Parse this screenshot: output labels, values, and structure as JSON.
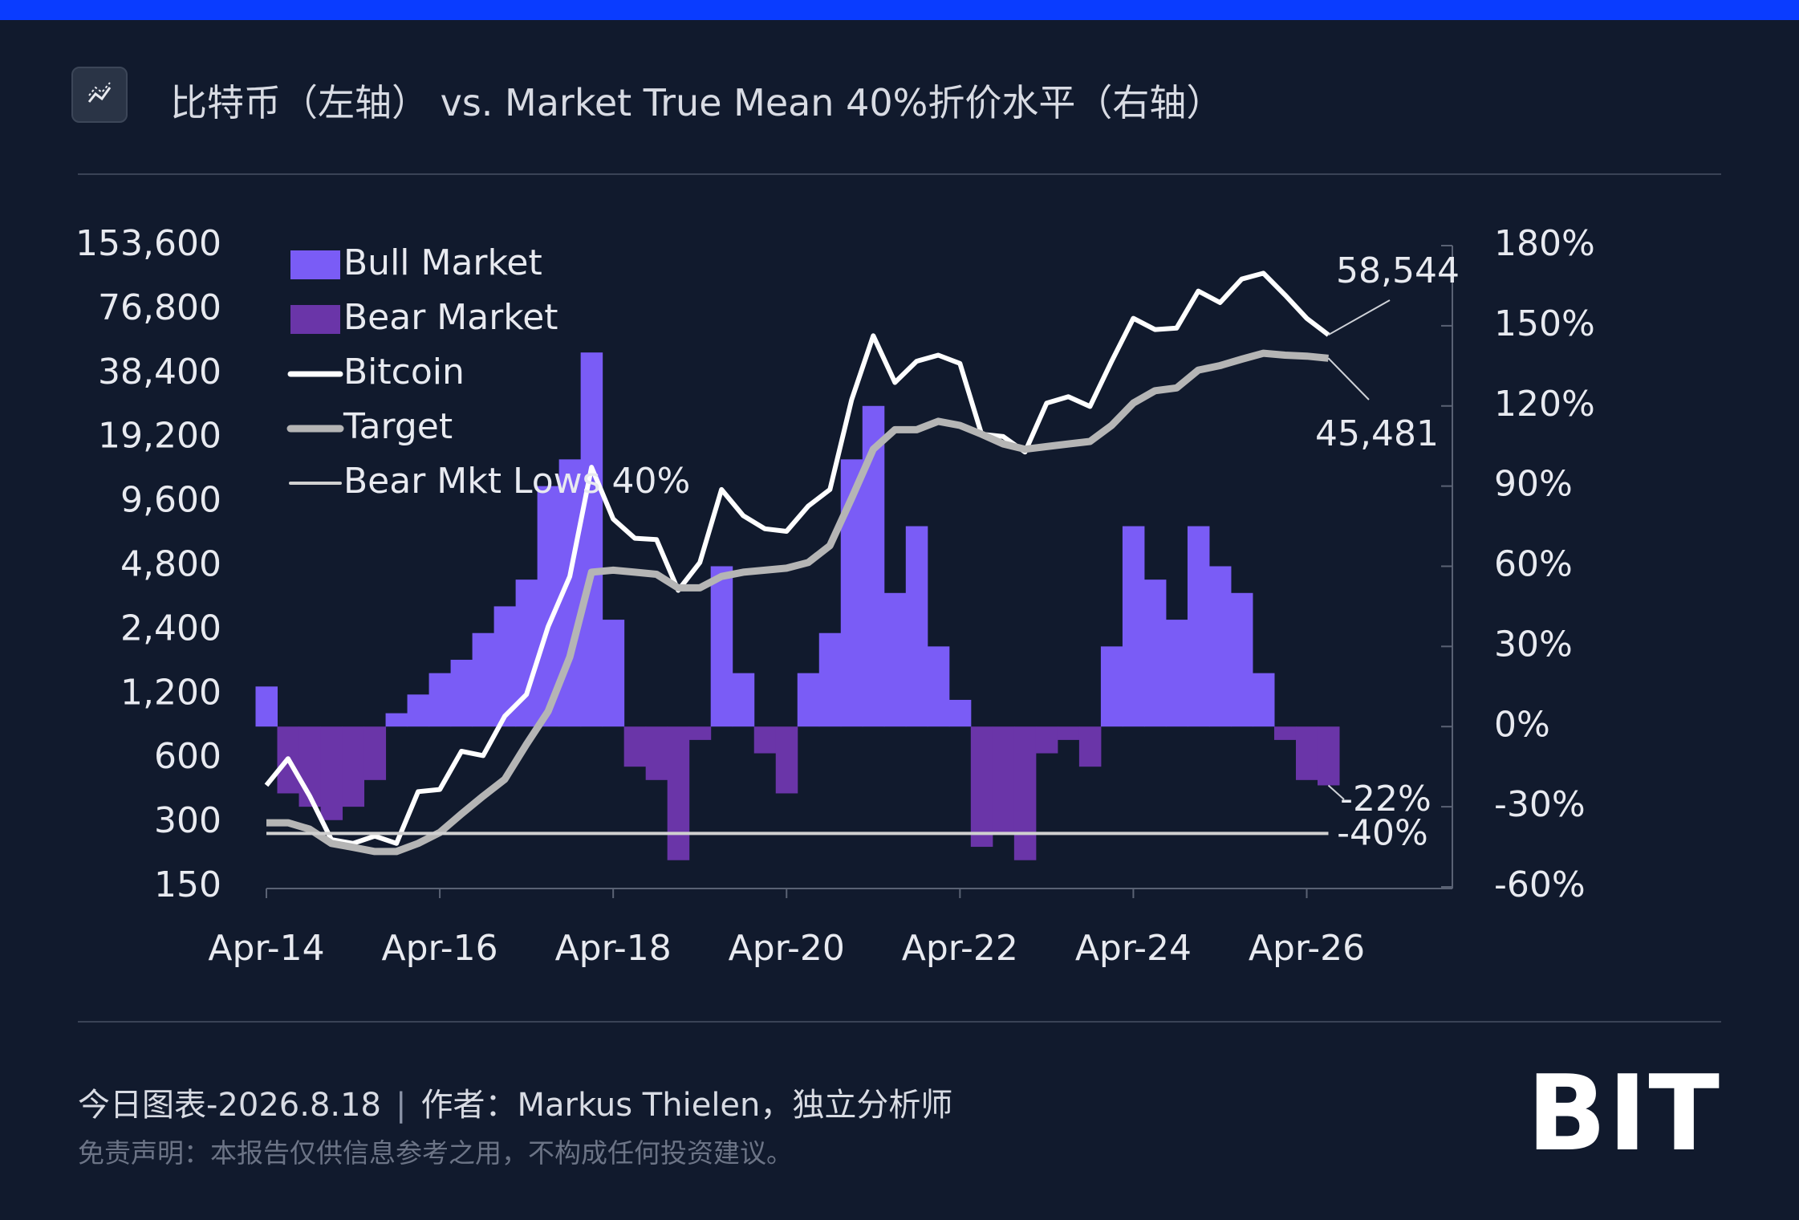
{
  "chart_data": {
    "type": "combo",
    "title": "比特币（左轴） vs. Market True Mean 40%折价水平（右轴）",
    "x": [
      2014.25,
      2014.5,
      2014.75,
      2015.0,
      2015.25,
      2015.5,
      2015.75,
      2016.0,
      2016.25,
      2016.5,
      2016.75,
      2017.0,
      2017.25,
      2017.5,
      2017.75,
      2018.0,
      2018.25,
      2018.5,
      2018.75,
      2019.0,
      2019.25,
      2019.5,
      2019.75,
      2020.0,
      2020.25,
      2020.5,
      2020.75,
      2021.0,
      2021.25,
      2021.5,
      2021.75,
      2022.0,
      2022.25,
      2022.5,
      2022.75,
      2023.0,
      2023.25,
      2023.5,
      2023.75,
      2024.0,
      2024.25,
      2024.5,
      2024.75,
      2025.0,
      2025.25,
      2025.5,
      2025.75,
      2026.0,
      2026.25,
      2026.5
    ],
    "xlim": [
      2014.25,
      2027.93
    ],
    "xticks": [
      {
        "value": 2014.25,
        "label": "Apr-14"
      },
      {
        "value": 2016.25,
        "label": "Apr-16"
      },
      {
        "value": 2018.25,
        "label": "Apr-18"
      },
      {
        "value": 2020.25,
        "label": "Apr-20"
      },
      {
        "value": 2022.25,
        "label": "Apr-22"
      },
      {
        "value": 2024.25,
        "label": "Apr-24"
      },
      {
        "value": 2026.25,
        "label": "Apr-26"
      }
    ],
    "yscale": "log",
    "ylim": [
      150,
      153600
    ],
    "yticks": [
      150,
      300,
      600,
      {
        "value": 1200,
        "label": "1,200"
      },
      {
        "value": 2400,
        "label": "2,400"
      },
      {
        "value": 4800,
        "label": "4,800"
      },
      {
        "value": 9600,
        "label": "9,600"
      },
      {
        "value": 19200,
        "label": "19,200"
      },
      {
        "value": 38400,
        "label": "38,400"
      },
      {
        "value": 76800,
        "label": "76,800"
      },
      {
        "value": 153600,
        "label": "153,600"
      }
    ],
    "y2lim": [
      -60,
      180
    ],
    "y2ticks": [
      {
        "value": -60,
        "label": "-60%"
      },
      {
        "value": -30,
        "label": "-30%"
      },
      {
        "value": 0,
        "label": "0%"
      },
      {
        "value": 30,
        "label": "30%"
      },
      {
        "value": 60,
        "label": "60%"
      },
      {
        "value": 90,
        "label": "90%"
      },
      {
        "value": 120,
        "label": "120%"
      },
      {
        "value": 150,
        "label": "150%"
      },
      {
        "value": 180,
        "label": "180%"
      }
    ],
    "series": [
      {
        "name": "Bull Market",
        "type": "bar",
        "axis": "y2",
        "color": "#7a5cf6",
        "values": [
          15,
          null,
          null,
          null,
          null,
          null,
          5,
          12,
          20,
          25,
          35,
          45,
          55,
          90,
          100,
          140,
          40,
          null,
          null,
          null,
          null,
          60,
          20,
          null,
          null,
          20,
          35,
          100,
          120,
          50,
          75,
          30,
          10,
          null,
          null,
          null,
          null,
          null,
          null,
          30,
          75,
          55,
          40,
          75,
          60,
          50,
          20,
          null,
          null,
          null
        ]
      },
      {
        "name": "Bear Market",
        "type": "bar",
        "axis": "y2",
        "color": "#6a35a8",
        "values": [
          null,
          -25,
          -30,
          -35,
          -30,
          -20,
          null,
          null,
          null,
          null,
          null,
          null,
          null,
          null,
          null,
          null,
          null,
          -15,
          -20,
          -50,
          -5,
          null,
          null,
          -10,
          -25,
          null,
          null,
          null,
          null,
          null,
          null,
          null,
          null,
          -45,
          -40,
          -50,
          -10,
          -5,
          -15,
          null,
          null,
          null,
          null,
          null,
          null,
          null,
          null,
          -5,
          -20,
          -22
        ],
        "value_labels": [
          null,
          null,
          null,
          null,
          null,
          null,
          null,
          null,
          null,
          null,
          null,
          null,
          null,
          null,
          null,
          null,
          null,
          null,
          null,
          null,
          null,
          null,
          null,
          null,
          null,
          null,
          null,
          null,
          null,
          null,
          null,
          null,
          null,
          null,
          null,
          null,
          null,
          null,
          null,
          null,
          null,
          null,
          null,
          null,
          null,
          null,
          null,
          null,
          null,
          "-22%"
        ]
      },
      {
        "name": "Bitcoin",
        "type": "line",
        "color": "#ffffff",
        "values": [
          450,
          600,
          400,
          250,
          240,
          260,
          240,
          420,
          430,
          650,
          620,
          950,
          1200,
          2500,
          4300,
          14000,
          8000,
          6500,
          6400,
          3700,
          5000,
          11000,
          8300,
          7200,
          7000,
          9200,
          11000,
          29000,
          58000,
          35000,
          44000,
          47000,
          43000,
          20000,
          19500,
          16500,
          28000,
          30000,
          27000,
          44000,
          70000,
          62000,
          63000,
          94000,
          83000,
          107000,
          114000,
          90000,
          70000,
          58544
        ],
        "value_labels": [
          null,
          null,
          null,
          null,
          null,
          null,
          null,
          null,
          null,
          null,
          null,
          null,
          null,
          null,
          null,
          null,
          null,
          null,
          null,
          null,
          null,
          null,
          null,
          null,
          null,
          null,
          null,
          null,
          null,
          null,
          null,
          null,
          null,
          null,
          null,
          null,
          null,
          null,
          null,
          null,
          null,
          null,
          null,
          null,
          null,
          null,
          null,
          null,
          null,
          "58,544"
        ]
      },
      {
        "name": "Target",
        "type": "line",
        "color": "#b5b5b5",
        "values": [
          300,
          300,
          280,
          240,
          230,
          220,
          220,
          240,
          270,
          330,
          400,
          480,
          700,
          1000,
          1800,
          4500,
          4600,
          4500,
          4400,
          3800,
          3800,
          4300,
          4500,
          4600,
          4700,
          5000,
          6000,
          10000,
          17000,
          21000,
          21000,
          23000,
          22000,
          20000,
          18000,
          17000,
          17500,
          18000,
          18500,
          22000,
          28000,
          32000,
          33000,
          40000,
          42000,
          45000,
          48000,
          47000,
          46500,
          45481
        ],
        "value_labels": [
          null,
          null,
          null,
          null,
          null,
          null,
          null,
          null,
          null,
          null,
          null,
          null,
          null,
          null,
          null,
          null,
          null,
          null,
          null,
          null,
          null,
          null,
          null,
          null,
          null,
          null,
          null,
          null,
          null,
          null,
          null,
          null,
          null,
          null,
          null,
          null,
          null,
          null,
          null,
          null,
          null,
          null,
          null,
          null,
          null,
          null,
          null,
          null,
          null,
          "45,481"
        ]
      },
      {
        "name": "Bear Mkt Lows 40%",
        "type": "hline",
        "axis": "y2",
        "color": "#d0d0d0",
        "value": -40,
        "value_label": "-40%"
      }
    ]
  },
  "footer": {
    "byline": "今日图表-2026.8.18",
    "author": "作者：Markus Thielen，独立分析师",
    "disclaimer": "免责声明：本报告仅供信息参考之用，不构成任何投资建议。",
    "logo": "BIT"
  }
}
